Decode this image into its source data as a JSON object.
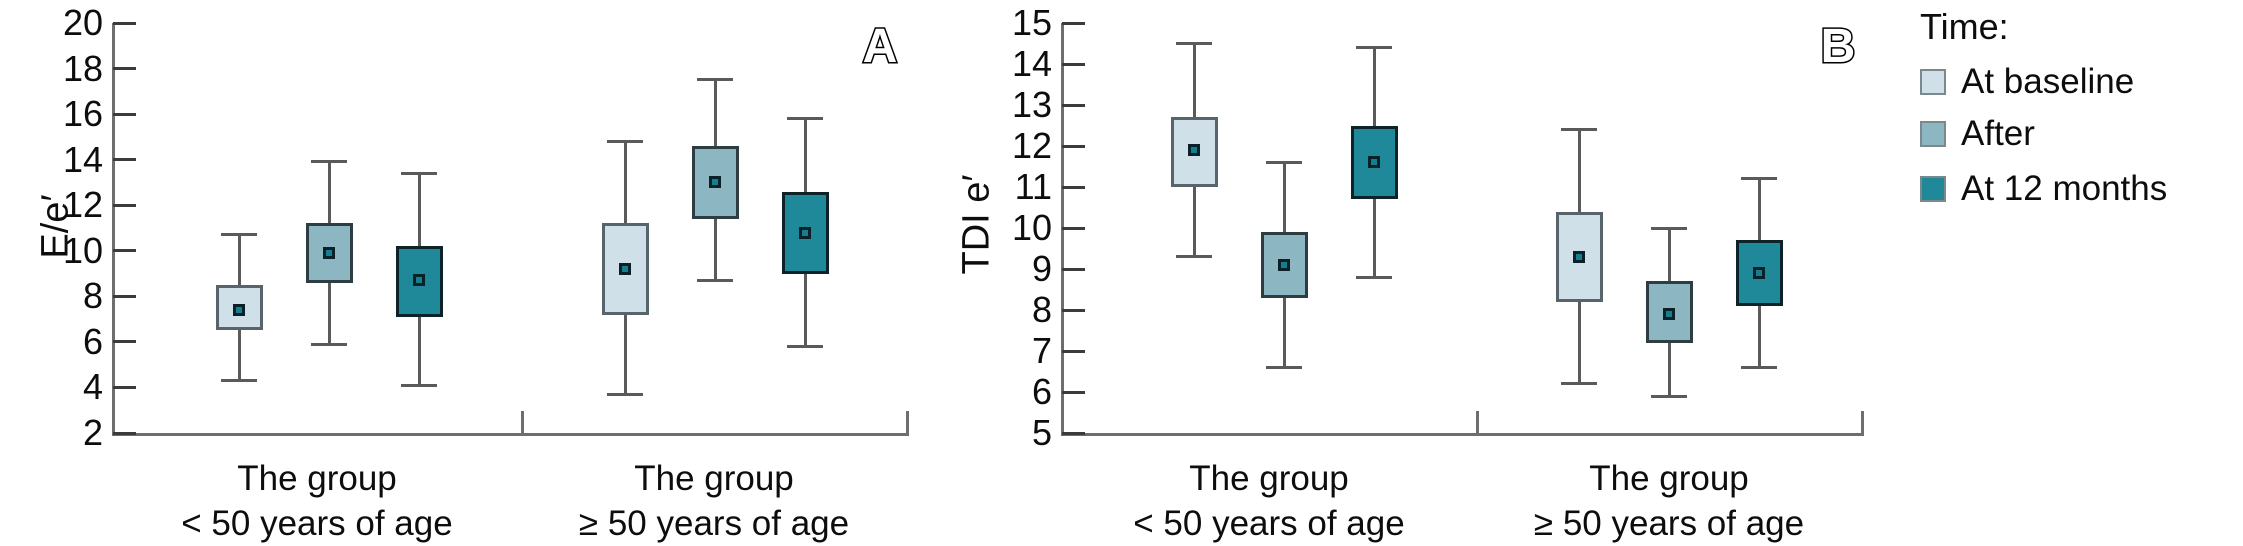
{
  "legend": {
    "title": "Time:",
    "items": [
      {
        "label": "At baseline",
        "color": "#cfe0e8"
      },
      {
        "label": "After",
        "color": "#8cb7c2"
      },
      {
        "label": "At 12 months",
        "color": "#1f8899"
      }
    ]
  },
  "colors": {
    "marker_fill": "#147f91",
    "marker_border": "#0a2227"
  },
  "chart_data": [
    {
      "type": "box",
      "panel_label": "A",
      "ylabel": "E/e′",
      "ylim": [
        2,
        20
      ],
      "yticks": [
        2,
        4,
        6,
        8,
        10,
        12,
        14,
        16,
        18,
        20
      ],
      "grid": false,
      "categories": [
        [
          "The group",
          "< 50 years of age"
        ],
        [
          "The group",
          "≥ 50 years of age"
        ]
      ],
      "series": [
        {
          "name": "At baseline",
          "fill": "#cfe0e8",
          "border": "#57656b",
          "groups": [
            {
              "whisker_low": 4.3,
              "q1": 6.5,
              "mean": 7.4,
              "q3": 8.5,
              "whisker_high": 10.7
            },
            {
              "whisker_low": 3.7,
              "q1": 7.2,
              "mean": 9.2,
              "q3": 11.2,
              "whisker_high": 14.8
            }
          ]
        },
        {
          "name": "After",
          "fill": "#8cb7c2",
          "border": "#2d3d41",
          "groups": [
            {
              "whisker_low": 5.9,
              "q1": 8.6,
              "mean": 9.9,
              "q3": 11.2,
              "whisker_high": 13.9
            },
            {
              "whisker_low": 8.7,
              "q1": 11.4,
              "mean": 13.0,
              "q3": 14.6,
              "whisker_high": 17.5
            }
          ]
        },
        {
          "name": "At 12 months",
          "fill": "#1f8899",
          "border": "#0d2327",
          "groups": [
            {
              "whisker_low": 4.1,
              "q1": 7.1,
              "mean": 8.7,
              "q3": 10.2,
              "whisker_high": 13.4
            },
            {
              "whisker_low": 5.8,
              "q1": 9.0,
              "mean": 10.8,
              "q3": 12.6,
              "whisker_high": 15.8
            }
          ]
        }
      ]
    },
    {
      "type": "box",
      "panel_label": "B",
      "ylabel": "TDI e′",
      "ylim": [
        5,
        15
      ],
      "yticks": [
        5,
        6,
        7,
        8,
        9,
        10,
        11,
        12,
        13,
        14,
        15
      ],
      "grid": false,
      "categories": [
        [
          "The group",
          "< 50 years of age"
        ],
        [
          "The group",
          "≥ 50 years of age"
        ]
      ],
      "series": [
        {
          "name": "At baseline",
          "fill": "#cfe0e8",
          "border": "#57656b",
          "groups": [
            {
              "whisker_low": 9.3,
              "q1": 11.0,
              "mean": 11.9,
              "q3": 12.7,
              "whisker_high": 14.5
            },
            {
              "whisker_low": 6.2,
              "q1": 8.2,
              "mean": 9.3,
              "q3": 10.4,
              "whisker_high": 12.4
            }
          ]
        },
        {
          "name": "After",
          "fill": "#8cb7c2",
          "border": "#2d3d41",
          "groups": [
            {
              "whisker_low": 6.6,
              "q1": 8.3,
              "mean": 9.1,
              "q3": 9.9,
              "whisker_high": 11.6
            },
            {
              "whisker_low": 5.9,
              "q1": 7.2,
              "mean": 7.9,
              "q3": 8.7,
              "whisker_high": 10.0
            }
          ]
        },
        {
          "name": "At 12 months",
          "fill": "#1f8899",
          "border": "#0d2327",
          "groups": [
            {
              "whisker_low": 8.8,
              "q1": 10.7,
              "mean": 11.6,
              "q3": 12.5,
              "whisker_high": 14.4
            },
            {
              "whisker_low": 6.6,
              "q1": 8.1,
              "mean": 8.9,
              "q3": 9.7,
              "whisker_high": 11.2
            }
          ]
        }
      ]
    }
  ]
}
